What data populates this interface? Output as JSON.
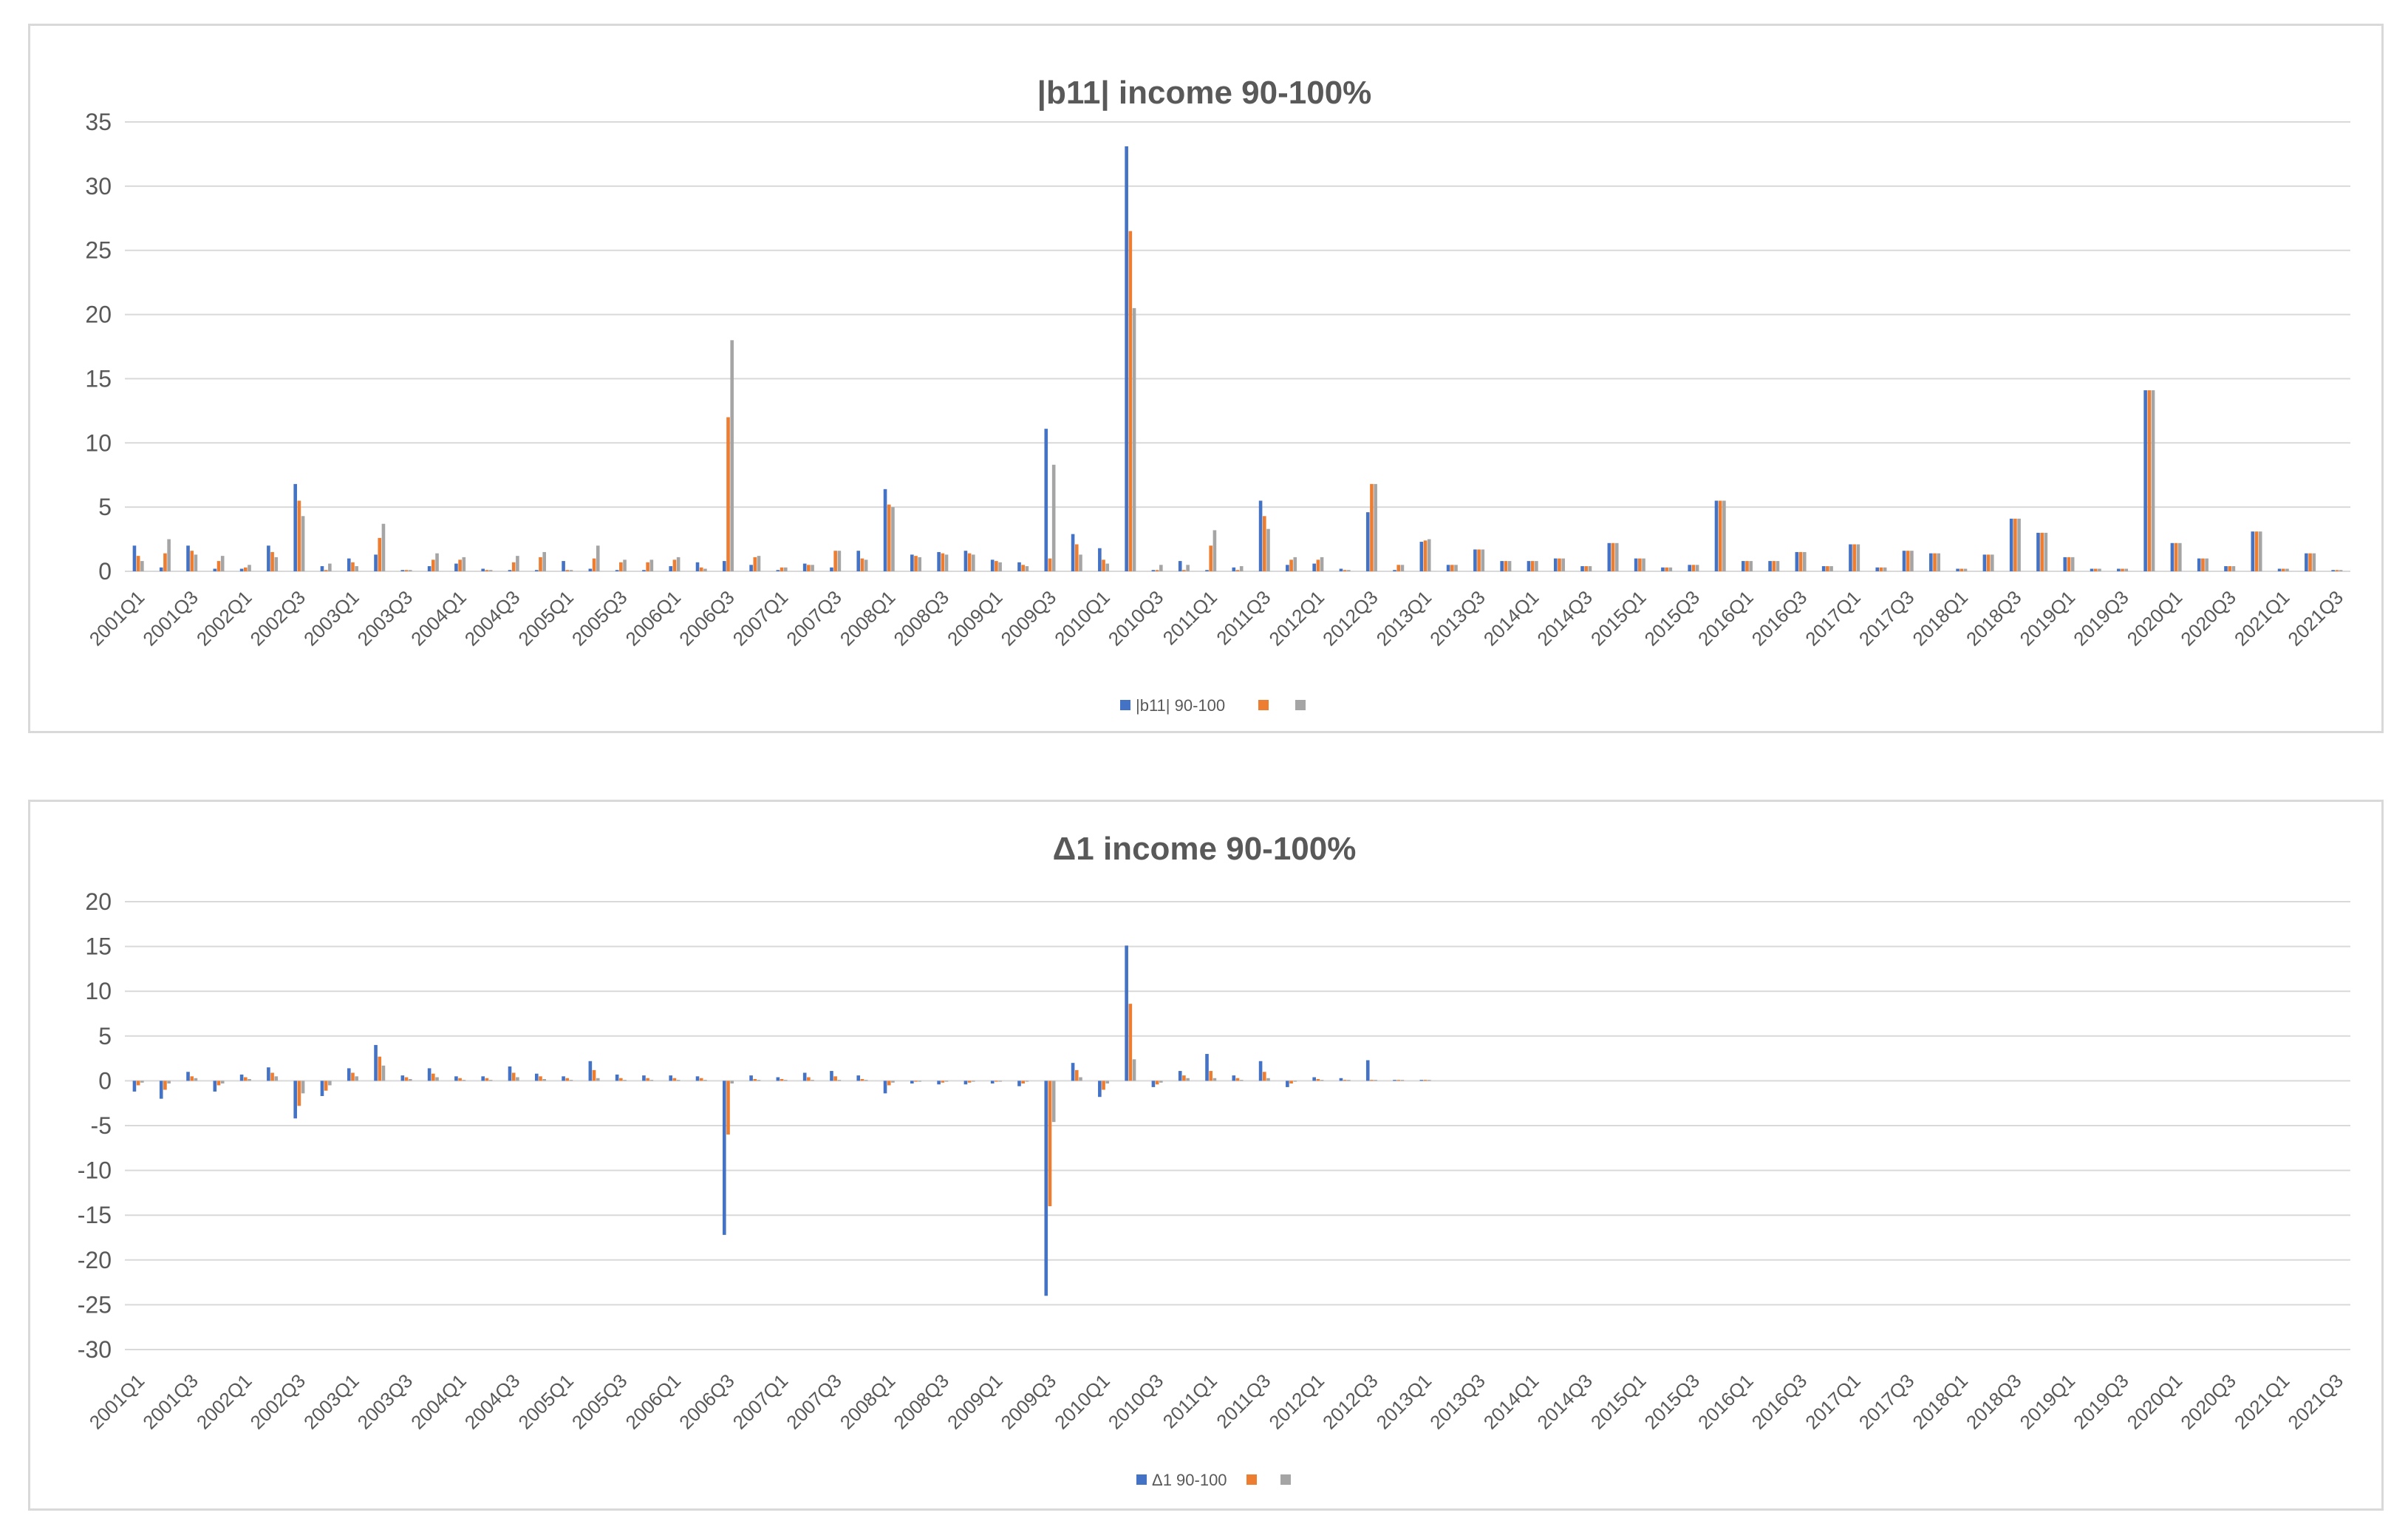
{
  "colors": {
    "series1": "#4472C4",
    "series2": "#ED7D31",
    "series3": "#A5A5A5",
    "grid": "#D9D9D9",
    "text": "#595959"
  },
  "chart_data": [
    {
      "type": "bar",
      "title": "|b11| income 90-100%",
      "ylim": [
        0,
        35
      ],
      "yticks": [
        0,
        5,
        10,
        15,
        20,
        25,
        30,
        35
      ],
      "grid": true,
      "legend": "bottom",
      "categories": [
        "2001Q1",
        "2001Q2",
        "2001Q3",
        "2001Q4",
        "2002Q1",
        "2002Q2",
        "2002Q3",
        "2002Q4",
        "2003Q1",
        "2003Q2",
        "2003Q3",
        "2003Q4",
        "2004Q1",
        "2004Q2",
        "2004Q3",
        "2004Q4",
        "2005Q1",
        "2005Q2",
        "2005Q3",
        "2005Q4",
        "2006Q1",
        "2006Q2",
        "2006Q3",
        "2006Q4",
        "2007Q1",
        "2007Q2",
        "2007Q3",
        "2007Q4",
        "2008Q1",
        "2008Q2",
        "2008Q3",
        "2008Q4",
        "2009Q1",
        "2009Q2",
        "2009Q3",
        "2009Q4",
        "2010Q1",
        "2010Q2",
        "2010Q3",
        "2010Q4",
        "2011Q1",
        "2011Q2",
        "2011Q3",
        "2011Q4",
        "2012Q1",
        "2012Q2",
        "2012Q3",
        "2012Q4",
        "2013Q1",
        "2013Q2",
        "2013Q3",
        "2013Q4",
        "2014Q1",
        "2014Q2",
        "2014Q3",
        "2014Q4",
        "2015Q1",
        "2015Q2",
        "2015Q3",
        "2015Q4",
        "2016Q1",
        "2016Q2",
        "2016Q3",
        "2016Q4",
        "2017Q1",
        "2017Q2",
        "2017Q3",
        "2017Q4",
        "2018Q1",
        "2018Q2",
        "2018Q3",
        "2018Q4",
        "2019Q1",
        "2019Q2",
        "2019Q3",
        "2019Q4",
        "2020Q1",
        "2020Q2",
        "2020Q3",
        "2020Q4",
        "2021Q1",
        "2021Q2",
        "2021Q3"
      ],
      "xtick_labels": [
        "2001Q1",
        "2001Q3",
        "2002Q1",
        "2002Q3",
        "2003Q1",
        "2003Q3",
        "2004Q1",
        "2004Q3",
        "2005Q1",
        "2005Q3",
        "2006Q1",
        "2006Q3",
        "2007Q1",
        "2007Q3",
        "2008Q1",
        "2008Q3",
        "2009Q1",
        "2009Q3",
        "2010Q1",
        "2010Q3",
        "2011Q1",
        "2011Q3",
        "2012Q1",
        "2012Q3",
        "2013Q1",
        "2013Q3",
        "2014Q1",
        "2014Q3",
        "2015Q1",
        "2015Q3",
        "2016Q1",
        "2016Q3",
        "2017Q1",
        "2017Q3",
        "2018Q1",
        "2018Q3",
        "2019Q1",
        "2019Q3",
        "2020Q1",
        "2020Q3",
        "2021Q1",
        "2021Q3"
      ],
      "series": [
        {
          "name": "|b11| 90-100",
          "values": [
            2.0,
            0.3,
            2.0,
            0.2,
            0.2,
            2.0,
            6.8,
            0.4,
            1.0,
            1.3,
            0.1,
            0.4,
            0.6,
            0.2,
            0.1,
            0.1,
            0.8,
            0.2,
            0.1,
            0.1,
            0.4,
            0.7,
            0.8,
            0.5,
            0.1,
            0.6,
            0.3,
            1.6,
            6.4,
            1.3,
            1.5,
            1.6,
            0.9,
            0.7,
            11.1,
            2.9,
            1.8,
            33.1,
            0.1,
            0.8,
            0.1,
            0.3,
            5.5,
            0.5,
            0.6,
            0.2,
            4.6,
            0.1,
            2.3,
            0.5,
            1.7,
            0.8,
            0.8,
            1.0,
            0.4,
            2.2,
            1.0,
            0.3,
            0.5,
            5.5,
            0.8,
            0.8,
            1.5,
            0.4,
            2.1,
            0.3,
            1.6,
            1.4,
            0.2,
            1.3,
            4.1,
            3.0,
            1.1,
            0.2,
            0.2,
            14.1,
            2.2,
            1.0,
            0.4,
            3.1,
            0.2,
            1.4,
            0.1
          ]
        },
        {
          "name": "",
          "values": [
            1.2,
            1.4,
            1.6,
            0.8,
            0.3,
            1.5,
            5.5,
            0.1,
            0.7,
            2.6,
            0.1,
            0.9,
            0.9,
            0.1,
            0.7,
            1.1,
            0.1,
            1.0,
            0.7,
            0.7,
            0.9,
            0.3,
            12.0,
            1.1,
            0.3,
            0.5,
            1.6,
            1.0,
            5.2,
            1.2,
            1.4,
            1.4,
            0.8,
            0.5,
            1.0,
            2.1,
            0.9,
            26.5,
            0.1,
            0.1,
            2.0,
            0.1,
            4.3,
            0.9,
            0.9,
            0.1,
            6.8,
            0.5,
            2.4,
            0.5,
            1.7,
            0.8,
            0.8,
            1.0,
            0.4,
            2.2,
            1.0,
            0.3,
            0.5,
            5.5,
            0.8,
            0.8,
            1.5,
            0.4,
            2.1,
            0.3,
            1.6,
            1.4,
            0.2,
            1.3,
            4.1,
            3.0,
            1.1,
            0.2,
            0.2,
            14.1,
            2.2,
            1.0,
            0.4,
            3.1,
            0.2,
            1.4,
            0.1
          ]
        },
        {
          "name": "",
          "values": [
            0.8,
            2.5,
            1.3,
            1.2,
            0.5,
            1.1,
            4.3,
            0.6,
            0.4,
            3.7,
            0.1,
            1.4,
            1.1,
            0.1,
            1.2,
            1.5,
            0.1,
            2.0,
            0.9,
            0.9,
            1.1,
            0.2,
            18.0,
            1.2,
            0.3,
            0.5,
            1.6,
            0.9,
            5.0,
            1.1,
            1.3,
            1.3,
            0.7,
            0.4,
            8.3,
            1.3,
            0.6,
            20.5,
            0.5,
            0.5,
            3.2,
            0.4,
            3.3,
            1.1,
            1.1,
            0.1,
            6.8,
            0.5,
            2.5,
            0.5,
            1.7,
            0.8,
            0.8,
            1.0,
            0.4,
            2.2,
            1.0,
            0.3,
            0.5,
            5.5,
            0.8,
            0.8,
            1.5,
            0.4,
            2.1,
            0.3,
            1.6,
            1.4,
            0.2,
            1.3,
            4.1,
            3.0,
            1.1,
            0.2,
            0.2,
            14.1,
            2.2,
            1.0,
            0.4,
            3.1,
            0.2,
            1.4,
            0.1
          ]
        }
      ]
    },
    {
      "type": "bar",
      "title": "Δ1 income 90-100%",
      "ylim": [
        -30,
        20
      ],
      "yticks": [
        -30,
        -25,
        -20,
        -15,
        -10,
        -5,
        0,
        5,
        10,
        15,
        20
      ],
      "grid": true,
      "legend": "bottom",
      "categories": [
        "2001Q1",
        "2001Q2",
        "2001Q3",
        "2001Q4",
        "2002Q1",
        "2002Q2",
        "2002Q3",
        "2002Q4",
        "2003Q1",
        "2003Q2",
        "2003Q3",
        "2003Q4",
        "2004Q1",
        "2004Q2",
        "2004Q3",
        "2004Q4",
        "2005Q1",
        "2005Q2",
        "2005Q3",
        "2005Q4",
        "2006Q1",
        "2006Q2",
        "2006Q3",
        "2006Q4",
        "2007Q1",
        "2007Q2",
        "2007Q3",
        "2007Q4",
        "2008Q1",
        "2008Q2",
        "2008Q3",
        "2008Q4",
        "2009Q1",
        "2009Q2",
        "2009Q3",
        "2009Q4",
        "2010Q1",
        "2010Q2",
        "2010Q3",
        "2010Q4",
        "2011Q1",
        "2011Q2",
        "2011Q3",
        "2011Q4",
        "2012Q1",
        "2012Q2",
        "2012Q3",
        "2012Q4",
        "2013Q1",
        "2013Q2",
        "2013Q3",
        "2013Q4",
        "2014Q1",
        "2014Q2",
        "2014Q3",
        "2014Q4",
        "2015Q1",
        "2015Q2",
        "2015Q3",
        "2015Q4",
        "2016Q1",
        "2016Q2",
        "2016Q3",
        "2016Q4",
        "2017Q1",
        "2017Q2",
        "2017Q3",
        "2017Q4",
        "2018Q1",
        "2018Q2",
        "2018Q3",
        "2018Q4",
        "2019Q1",
        "2019Q2",
        "2019Q3",
        "2019Q4",
        "2020Q1",
        "2020Q2",
        "2020Q3",
        "2020Q4",
        "2021Q1",
        "2021Q2",
        "2021Q3"
      ],
      "xtick_labels": [
        "2001Q1",
        "2001Q3",
        "2002Q1",
        "2002Q3",
        "2003Q1",
        "2003Q3",
        "2004Q1",
        "2004Q3",
        "2005Q1",
        "2005Q3",
        "2006Q1",
        "2006Q3",
        "2007Q1",
        "2007Q3",
        "2008Q1",
        "2008Q3",
        "2009Q1",
        "2009Q3",
        "2010Q1",
        "2010Q3",
        "2011Q1",
        "2011Q3",
        "2012Q1",
        "2012Q3",
        "2013Q1",
        "2013Q3",
        "2014Q1",
        "2014Q3",
        "2015Q1",
        "2015Q3",
        "2016Q1",
        "2016Q3",
        "2017Q1",
        "2017Q3",
        "2018Q1",
        "2018Q3",
        "2019Q1",
        "2019Q3",
        "2020Q1",
        "2020Q3",
        "2021Q1",
        "2021Q3"
      ],
      "series": [
        {
          "name": "Δ1 90-100",
          "values": [
            -1.2,
            -2.0,
            1.0,
            -1.2,
            0.7,
            1.5,
            -4.2,
            -1.7,
            1.4,
            4.0,
            0.6,
            1.4,
            0.5,
            0.5,
            1.6,
            0.8,
            0.5,
            2.2,
            0.7,
            0.6,
            0.6,
            0.5,
            -17.2,
            0.6,
            0.4,
            0.9,
            1.1,
            0.6,
            -1.4,
            -0.3,
            -0.4,
            -0.4,
            -0.3,
            -0.6,
            -24.0,
            2.0,
            -1.8,
            15.1,
            -0.7,
            1.1,
            3.0,
            0.6,
            2.2,
            -0.7,
            0.4,
            0.3,
            2.3,
            0.1,
            0.1,
            null,
            null,
            null,
            null,
            null,
            null,
            null,
            null,
            null,
            null,
            null,
            null,
            null,
            null,
            null,
            null,
            null,
            null,
            null,
            null,
            null,
            null,
            null,
            null,
            null,
            null,
            null,
            null,
            null,
            null,
            null,
            null,
            null,
            null
          ]
        },
        {
          "name": "",
          "values": [
            -0.5,
            -1.0,
            0.5,
            -0.5,
            0.4,
            0.9,
            -2.8,
            -1.1,
            0.9,
            2.7,
            0.4,
            0.8,
            0.3,
            0.3,
            0.9,
            0.5,
            0.3,
            1.2,
            0.3,
            0.3,
            0.3,
            0.3,
            -6.0,
            0.2,
            0.2,
            0.4,
            0.5,
            0.2,
            -0.5,
            -0.1,
            -0.2,
            -0.2,
            -0.1,
            -0.3,
            -14.0,
            1.2,
            -1.0,
            8.6,
            -0.4,
            0.6,
            1.1,
            0.3,
            1.0,
            -0.3,
            0.2,
            0.1,
            0.1,
            0.1,
            0.1,
            null,
            null,
            null,
            null,
            null,
            null,
            null,
            null,
            null,
            null,
            null,
            null,
            null,
            null,
            null,
            null,
            null,
            null,
            null,
            null,
            null,
            null,
            null,
            null,
            null,
            null,
            null,
            null,
            null,
            null,
            null,
            null,
            null,
            null
          ]
        },
        {
          "name": "",
          "values": [
            -0.2,
            -0.3,
            0.3,
            -0.3,
            0.2,
            0.5,
            -1.4,
            -0.5,
            0.5,
            1.7,
            0.2,
            0.4,
            0.1,
            0.1,
            0.4,
            0.2,
            0.1,
            0.3,
            0.1,
            0.1,
            0.1,
            0.1,
            -0.3,
            0.1,
            0.1,
            0.1,
            0.1,
            0.1,
            -0.2,
            -0.1,
            -0.1,
            -0.1,
            -0.1,
            -0.1,
            -4.6,
            0.4,
            -0.3,
            2.4,
            -0.2,
            0.3,
            0.3,
            0.1,
            0.3,
            -0.1,
            0.1,
            0.1,
            0.1,
            0.1,
            0.1,
            null,
            null,
            null,
            null,
            null,
            null,
            null,
            null,
            null,
            null,
            null,
            null,
            null,
            null,
            null,
            null,
            null,
            null,
            null,
            null,
            null,
            null,
            null,
            null,
            null,
            null,
            null,
            null,
            null,
            null,
            null,
            null,
            null,
            null
          ]
        }
      ]
    }
  ]
}
